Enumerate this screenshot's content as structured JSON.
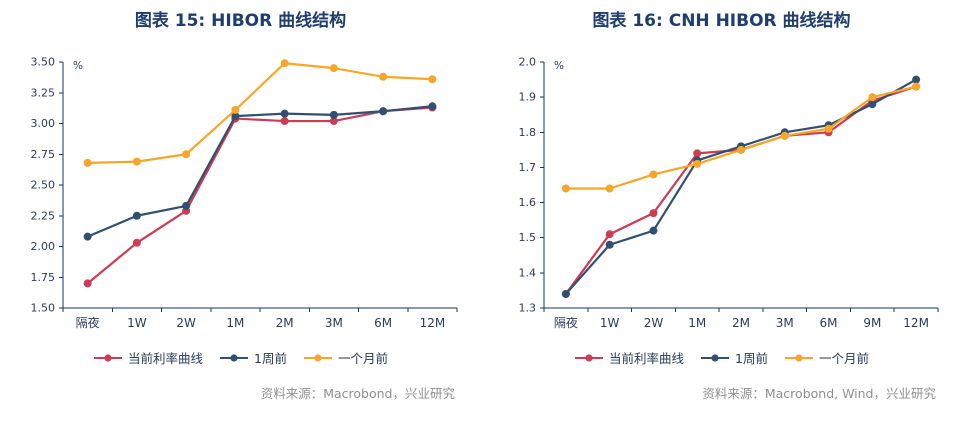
{
  "colors": {
    "title": "#1f3d6d",
    "axis": "#16365c",
    "tick": "#2b3a55",
    "source": "#8f8f8f",
    "background": "#ffffff"
  },
  "chart_data": [
    {
      "type": "line",
      "title": "图表 15: HIBOR 曲线结构",
      "source": "资料来源：Macrobond，兴业研究",
      "unit": "%",
      "grid": false,
      "legend_position": "bottom",
      "categories": [
        "隔夜",
        "1W",
        "2W",
        "1M",
        "2M",
        "3M",
        "6M",
        "12M"
      ],
      "ylim": [
        1.5,
        3.5
      ],
      "ytick_step": 0.25,
      "ytick_decimals": 2,
      "series": [
        {
          "name": "当前利率曲线",
          "color": "#cd3b54",
          "values": [
            1.7,
            2.03,
            2.29,
            3.04,
            3.02,
            3.02,
            3.1,
            3.13
          ]
        },
        {
          "name": "1周前",
          "color": "#31506e",
          "values": [
            2.08,
            2.25,
            2.33,
            3.06,
            3.08,
            3.07,
            3.1,
            3.14
          ]
        },
        {
          "name": "一个月前",
          "color": "#f7a629",
          "values": [
            2.68,
            2.69,
            2.75,
            3.11,
            3.49,
            3.45,
            3.38,
            3.36
          ]
        }
      ]
    },
    {
      "type": "line",
      "title": "图表 16: CNH HIBOR 曲线结构",
      "source": "资料来源：Macrobond, Wind，兴业研究",
      "unit": "%",
      "grid": false,
      "legend_position": "bottom",
      "categories": [
        "隔夜",
        "1W",
        "2W",
        "1M",
        "2M",
        "3M",
        "6M",
        "9M",
        "12M"
      ],
      "ylim": [
        1.3,
        2.0
      ],
      "ytick_step": 0.1,
      "ytick_decimals": 1,
      "series": [
        {
          "name": "当前利率曲线",
          "color": "#cd3b54",
          "values": [
            1.34,
            1.51,
            1.57,
            1.74,
            1.75,
            1.79,
            1.8,
            1.89,
            1.93
          ]
        },
        {
          "name": "1周前",
          "color": "#31506e",
          "values": [
            1.34,
            1.48,
            1.52,
            1.72,
            1.76,
            1.8,
            1.82,
            1.88,
            1.95
          ]
        },
        {
          "name": "一个月前",
          "color": "#f7a629",
          "values": [
            1.64,
            1.64,
            1.68,
            1.71,
            1.75,
            1.79,
            1.81,
            1.9,
            1.93
          ]
        }
      ]
    }
  ]
}
